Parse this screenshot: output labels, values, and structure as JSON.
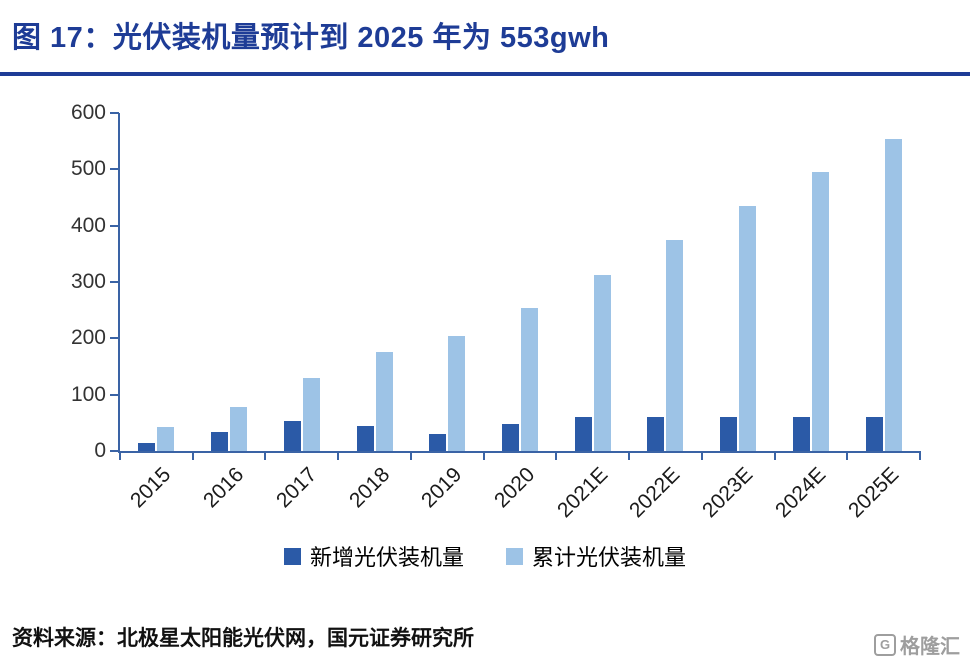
{
  "header": {
    "title": "图 17：光伏装机量预计到 2025 年为 553gwh"
  },
  "chart_data": {
    "type": "bar",
    "title": "光伏装机量预计到 2025 年为 553gwh",
    "categories": [
      "2015",
      "2016",
      "2017",
      "2018",
      "2019",
      "2020",
      "2021E",
      "2022E",
      "2023E",
      "2024E",
      "2025E"
    ],
    "series": [
      {
        "name": "新增光伏装机量",
        "color": "#2B5AA7",
        "values": [
          15,
          34,
          53,
          44,
          30,
          48,
          60,
          60,
          60,
          60,
          60
        ]
      },
      {
        "name": "累计光伏装机量",
        "color": "#9DC3E6",
        "values": [
          43,
          78,
          130,
          176,
          205,
          253,
          313,
          375,
          435,
          495,
          553
        ]
      }
    ],
    "xlabel": "",
    "ylabel": "",
    "ylim": [
      0,
      600
    ],
    "yticks": [
      0,
      100,
      200,
      300,
      400,
      500,
      600
    ],
    "grid": false,
    "legend_position": "bottom"
  },
  "footer": {
    "source": "资料来源：北极星太阳能光伏网，国元证券研究所",
    "watermark": {
      "brand": "格隆汇",
      "logo_letter": "G"
    }
  },
  "colors": {
    "title": "#1E3C96",
    "axis": "#3A63A5",
    "tick_label": "#333333",
    "background": "#FFFFFF"
  }
}
